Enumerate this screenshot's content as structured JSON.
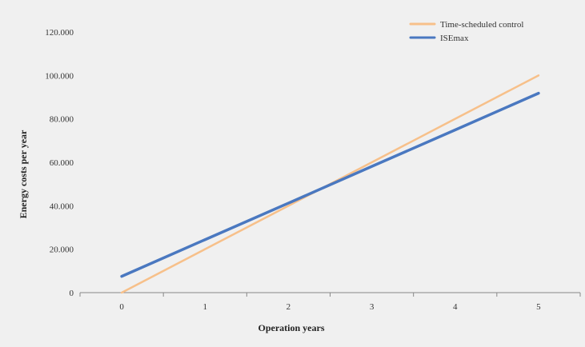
{
  "chart_data": {
    "type": "line",
    "title": "",
    "xlabel": "Operation years",
    "ylabel": "Energy costs per year",
    "x": [
      0,
      1,
      2,
      3,
      4,
      5
    ],
    "x_tick_labels": [
      "0",
      "1",
      "2",
      "3",
      "4",
      "5"
    ],
    "y_tick_labels": [
      "0",
      "20.000",
      "40.000",
      "60.000",
      "80.000",
      "100.000",
      "120.000"
    ],
    "ylim": [
      0,
      120000
    ],
    "xlim": [
      -0.5,
      5.5
    ],
    "grid": false,
    "legend_position": "top-right",
    "series": [
      {
        "name": "Time-scheduled control",
        "color": "#f7c08a",
        "values": [
          0,
          20000,
          40000,
          60000,
          80000,
          100000
        ]
      },
      {
        "name": "ISEmax",
        "color": "#4a78c0",
        "values": [
          7500,
          24400,
          41200,
          58100,
          74900,
          91800
        ]
      }
    ]
  }
}
